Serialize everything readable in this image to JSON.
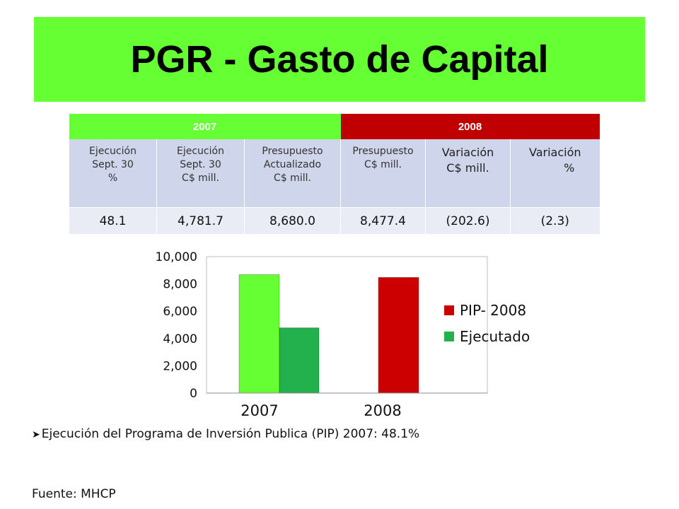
{
  "title": "PGR - Gasto de Capital",
  "table": {
    "year_2007": "2007",
    "year_2008": "2008",
    "headers": [
      [
        "Ejecución",
        "Sept. 30",
        "%"
      ],
      [
        "Ejecución",
        "Sept. 30",
        "C$ mill."
      ],
      [
        "Presupuesto",
        "Actualizado",
        "C$ mill."
      ],
      [
        "Presupuesto",
        "C$ mill."
      ],
      [
        "Variación",
        "C$ mill."
      ],
      [
        "Variación",
        "%"
      ]
    ],
    "values": [
      "48.1",
      "4,781.7",
      "8,680.0",
      "8,477.4",
      "(202.6)",
      "(2.3)"
    ]
  },
  "chart_data": {
    "type": "bar",
    "categories": [
      "2007",
      "2008"
    ],
    "series": [
      {
        "name": "PIP- 2008",
        "values": [
          8680.0,
          8477.4
        ],
        "color": "#66ff33"
      },
      {
        "name": "Ejecutado",
        "values": [
          4781.7,
          null
        ],
        "color": "#22b14c"
      }
    ],
    "bar_colors": {
      "2007_pip": "#66ff33",
      "2008_pip": "#cc0000",
      "ejecutado": "#22b14c"
    },
    "legend_colors": {
      "PIP- 2008": "#cc0000",
      "Ejecutado": "#22b14c"
    },
    "yticks": [
      "10,000",
      "8,000",
      "6,000",
      "4,000",
      "2,000",
      "0"
    ],
    "ylim": [
      0,
      10000
    ],
    "legend_position": "right",
    "grid": false
  },
  "bullet": "Ejecución del Programa de Inversión Publica (PIP) 2007:  48.1%",
  "source": "Fuente: MHCP"
}
